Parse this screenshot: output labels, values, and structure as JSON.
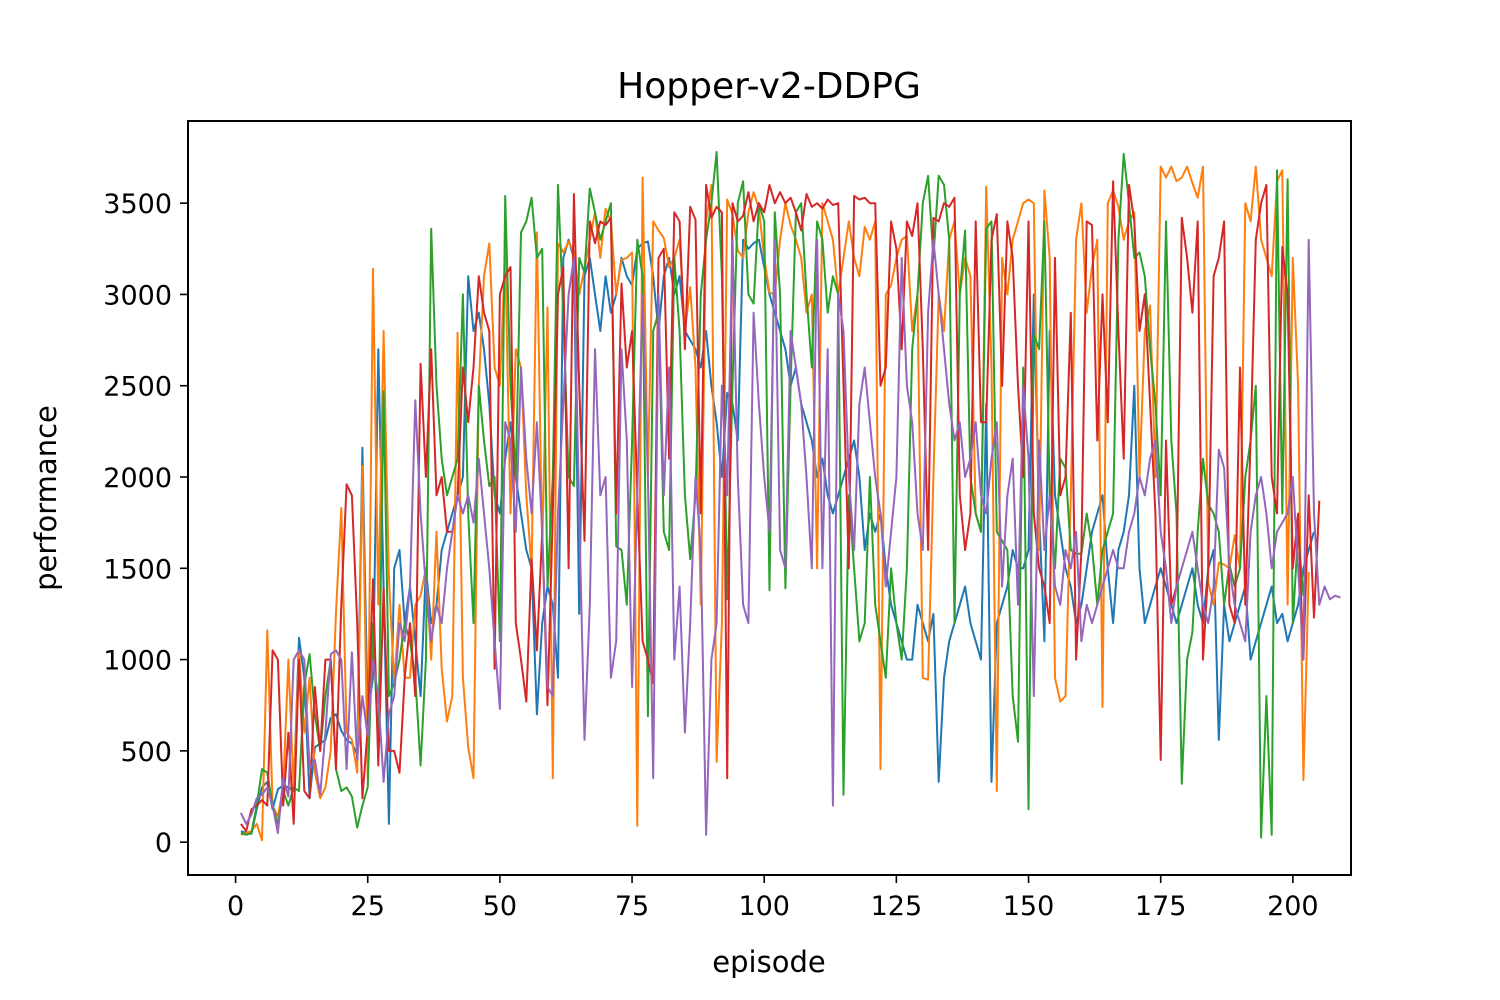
{
  "chart_data": {
    "type": "line",
    "title": "Hopper-v2-DDPG",
    "xlabel": "episode",
    "ylabel": "performance",
    "xlim": [
      -9,
      211
    ],
    "ylim": [
      -180,
      3950
    ],
    "x_ticks": [
      0,
      25,
      50,
      75,
      100,
      125,
      150,
      175,
      200
    ],
    "x_tick_labels": [
      "0",
      "25",
      "50",
      "75",
      "100",
      "125",
      "150",
      "175",
      "200"
    ],
    "y_ticks": [
      0,
      500,
      1000,
      1500,
      2000,
      2500,
      3000,
      3500
    ],
    "y_tick_labels": [
      "0",
      "500",
      "1000",
      "1500",
      "2000",
      "2500",
      "3000",
      "3500"
    ],
    "grid": false,
    "legend": "none",
    "series": [
      {
        "color": "#1f77b4",
        "x_start": 1,
        "values": [
          60,
          50,
          45,
          180,
          300,
          330,
          180,
          290,
          310,
          300,
          280,
          1120,
          900,
          240,
          520,
          540,
          560,
          680,
          700,
          610,
          560,
          540,
          480,
          2160,
          700,
          900,
          2700,
          1400,
          100,
          1500,
          1600,
          1200,
          1400,
          1100,
          800,
          1500,
          1200,
          1300,
          1600,
          1700,
          1800,
          1900,
          2000,
          3100,
          2800,
          2900,
          2700,
          2400,
          1900,
          1800,
          2100,
          2300,
          2000,
          1800,
          1600,
          1500,
          700,
          1200,
          1400,
          1300,
          900,
          3200,
          3300,
          3200,
          1250,
          3100,
          3200,
          3000,
          2800,
          3100,
          2900,
          3000,
          3200,
          3100,
          3050,
          3250,
          3280,
          3290,
          3100,
          2800,
          3100,
          3200,
          3000,
          3100,
          2800,
          2750,
          2700,
          2600,
          2800,
          2500,
          2300,
          2000,
          2460,
          2400,
          2200,
          3300,
          3250,
          3280,
          3300,
          3150,
          3000,
          2900,
          2800,
          2700,
          2500,
          2600,
          2400,
          2300,
          2200,
          2000,
          2100,
          1900,
          1800,
          1900,
          2000,
          2100,
          2200,
          2000,
          1600,
          1800,
          1700,
          1800,
          1500,
          1300,
          1200,
          1100,
          1000,
          1000,
          1300,
          1200,
          1100,
          1250,
          330,
          900,
          1100,
          1200,
          1300,
          1400,
          1200,
          1100,
          1000,
          2400,
          330,
          1200,
          1300,
          1400,
          1600,
          1500,
          1500,
          1600,
          3000,
          1800,
          1100,
          2800,
          1900,
          1700,
          1500,
          1400,
          1200,
          1300,
          1500,
          1700,
          1800,
          1900,
          1500,
          1200,
          1600,
          1700,
          1900,
          2500,
          1500,
          1200,
          1300,
          1400,
          1500,
          1400,
          1300,
          1200,
          1300,
          1400,
          1500,
          1300,
          1200,
          1500,
          1600,
          560,
          1300,
          1100,
          1200,
          1300,
          1400,
          1000,
          1100,
          1200,
          1300,
          1400,
          1200,
          1250,
          1100,
          1200,
          1300,
          1500,
          1600,
          1700
        ]
      },
      {
        "color": "#ff7f0e",
        "x_start": 1,
        "values": [
          40,
          50,
          60,
          100,
          10,
          1160,
          200,
          140,
          300,
          1000,
          280,
          1050,
          600,
          900,
          380,
          240,
          300,
          500,
          1260,
          1830,
          600,
          560,
          380,
          2060,
          350,
          3140,
          1300,
          2800,
          1450,
          870,
          1300,
          900,
          900,
          1300,
          1350,
          1500,
          1000,
          1700,
          950,
          660,
          800,
          2790,
          900,
          520,
          350,
          2500,
          3100,
          3280,
          2600,
          2500,
          3230,
          1800,
          2700,
          2600,
          1900,
          1500,
          3340,
          1600,
          2930,
          350,
          3280,
          3230,
          3290,
          3230,
          3000,
          3140,
          3300,
          3450,
          3200,
          3470,
          3400,
          3000,
          3190,
          3200,
          3230,
          90,
          3640,
          2000,
          3400,
          3350,
          3310,
          3150,
          3200,
          3300,
          2800,
          3040,
          2600,
          1300,
          3400,
          3600,
          440,
          1200,
          3520,
          3440,
          3240,
          3200,
          3450,
          3560,
          3470,
          3200,
          3010,
          3000,
          3300,
          3500,
          3380,
          3300,
          3200,
          2900,
          3000,
          1500,
          3500,
          3400,
          3300,
          3000,
          3200,
          3400,
          3200,
          3100,
          3370,
          3300,
          3400,
          400,
          3000,
          3050,
          3200,
          3300,
          3320,
          2800,
          3000,
          900,
          890,
          2000,
          3000,
          2800,
          3300,
          3400,
          3000,
          3200,
          3100,
          1800,
          1700,
          3590,
          2600,
          280,
          3200,
          3000,
          3300,
          3400,
          3500,
          3520,
          3500,
          1600,
          3570,
          3200,
          900,
          770,
          800,
          1900,
          3300,
          3500,
          2900,
          3150,
          3300,
          740,
          3500,
          3570,
          3480,
          3300,
          3400,
          3450,
          2000,
          2800,
          2940,
          2000,
          3700,
          3640,
          3700,
          3620,
          3640,
          3700,
          3610,
          3530,
          3700,
          1420,
          1300,
          1530,
          1520,
          1500,
          1680,
          1500,
          3500,
          3400,
          3700,
          3300,
          3200,
          3100,
          3620,
          3680,
          1300,
          3200,
          2500,
          340,
          1480
        ]
      },
      {
        "color": "#2ca02c",
        "x_start": 1,
        "values": [
          50,
          40,
          50,
          200,
          400,
          380,
          200,
          100,
          280,
          200,
          300,
          280,
          860,
          1030,
          700,
          500,
          800,
          1000,
          400,
          280,
          300,
          250,
          80,
          200,
          300,
          1200,
          500,
          2470,
          800,
          870,
          1000,
          1200,
          1100,
          900,
          420,
          1000,
          3360,
          2500,
          2100,
          1900,
          2000,
          2100,
          3000,
          1800,
          1200,
          2500,
          2200,
          1950,
          2000,
          1100,
          3540,
          2500,
          2000,
          3340,
          3400,
          3530,
          3200,
          3250,
          1400,
          2000,
          3600,
          2900,
          2000,
          1950,
          3200,
          3120,
          3580,
          3450,
          3300,
          3400,
          3500,
          1620,
          1600,
          1300,
          2200,
          3300,
          3100,
          690,
          2800,
          2900,
          1700,
          1600,
          3200,
          2800,
          1900,
          1550,
          1900,
          3000,
          3300,
          3500,
          3780,
          3100,
          1330,
          2500,
          3500,
          3620,
          3000,
          2950,
          3500,
          3400,
          1380,
          3450,
          3000,
          1390,
          2500,
          3450,
          3500,
          3000,
          2600,
          3400,
          3300,
          2900,
          3100,
          3000,
          260,
          1900,
          1500,
          1100,
          1200,
          2000,
          1300,
          1100,
          900,
          1500,
          1200,
          1000,
          1500,
          2700,
          3000,
          3500,
          3650,
          3200,
          3650,
          3600,
          3300,
          1200,
          3000,
          3350,
          2000,
          1800,
          1700,
          3360,
          3400,
          1700,
          1650,
          1600,
          800,
          550,
          2600,
          180,
          2780,
          2700,
          3400,
          1900,
          1500,
          2100,
          2050,
          1600,
          1580,
          1580,
          1800,
          1620,
          1300,
          1600,
          1700,
          1800,
          3300,
          3770,
          3500,
          3200,
          3230,
          3100,
          2700,
          2400,
          1900,
          3400,
          2200,
          1800,
          320,
          1000,
          1150,
          1700,
          2100,
          1850,
          1800,
          1700,
          1300,
          1520,
          1400,
          1500,
          2000,
          2200,
          2500,
          25,
          800,
          40,
          3680,
          1800,
          3630,
          1200,
          1700,
          1350
        ]
      },
      {
        "color": "#d62728",
        "x_start": 1,
        "values": [
          100,
          60,
          180,
          200,
          230,
          200,
          1050,
          1000,
          200,
          600,
          100,
          1000,
          280,
          240,
          850,
          500,
          1000,
          1000,
          400,
          1300,
          1960,
          1900,
          1200,
          240,
          620,
          1440,
          420,
          1390,
          500,
          500,
          380,
          900,
          1200,
          800,
          2620,
          2000,
          2700,
          1900,
          2000,
          1700,
          1700,
          1900,
          2600,
          2300,
          2600,
          3100,
          2900,
          2800,
          950,
          3000,
          3100,
          3150,
          1200,
          1000,
          770,
          1550,
          1050,
          1700,
          750,
          1800,
          3000,
          3150,
          1500,
          3550,
          2500,
          1650,
          3400,
          3280,
          3400,
          3380,
          3420,
          1800,
          3060,
          2600,
          2800,
          1900,
          1100,
          1000,
          870,
          3200,
          3250,
          2100,
          3450,
          3400,
          2700,
          3480,
          3410,
          1800,
          3600,
          3420,
          3480,
          3450,
          350,
          3500,
          3400,
          3430,
          3560,
          3400,
          3500,
          3450,
          3600,
          3500,
          3560,
          3500,
          3530,
          3450,
          3350,
          3550,
          3480,
          3500,
          3470,
          3520,
          3490,
          3500,
          2500,
          1500,
          3540,
          3520,
          3530,
          3500,
          3500,
          2500,
          2600,
          3400,
          3250,
          2700,
          3400,
          3320,
          3500,
          2700,
          1600,
          3420,
          3400,
          3500,
          3480,
          3530,
          1900,
          1600,
          1800,
          3400,
          2300,
          2300,
          3300,
          3440,
          2500,
          3400,
          3200,
          2500,
          2000,
          3400,
          1800,
          1500,
          1400,
          1200,
          3200,
          1900,
          2000,
          2900,
          1000,
          1600,
          3400,
          3380,
          2200,
          3000,
          2300,
          3620,
          2800,
          2100,
          3600,
          3400,
          2800,
          3000,
          2400,
          1800,
          450,
          2200,
          1300,
          1400,
          3420,
          3200,
          2900,
          3400,
          1000,
          1500,
          3100,
          3200,
          3400,
          1300,
          1200,
          2600,
          1300,
          2200,
          3300,
          3500,
          3600,
          2000,
          1800,
          3260,
          3000,
          1500,
          1800,
          1000,
          1900,
          1230,
          1870
        ]
      },
      {
        "color": "#9467bd",
        "x_start": 1,
        "values": [
          160,
          100,
          150,
          240,
          260,
          300,
          200,
          50,
          350,
          250,
          1000,
          1050,
          1000,
          400,
          450,
          260,
          600,
          1030,
          1050,
          1000,
          400,
          1040,
          450,
          800,
          580,
          1000,
          800,
          330,
          700,
          800,
          1200,
          1100,
          1400,
          2420,
          1800,
          1400,
          1100,
          1300,
          1200,
          1500,
          1700,
          1900,
          1800,
          1900,
          1750,
          2100,
          1800,
          1500,
          1100,
          730,
          2300,
          2200,
          1700,
          2600,
          2100,
          1800,
          2300,
          1700,
          850,
          800,
          1800,
          2400,
          3000,
          3200,
          1800,
          560,
          1300,
          2700,
          1900,
          2000,
          900,
          1100,
          2700,
          2200,
          850,
          1900,
          3000,
          2000,
          350,
          3000,
          1900,
          2600,
          1000,
          1400,
          600,
          1200,
          2000,
          1600,
          40,
          1000,
          1200,
          2500,
          1900,
          3300,
          2000,
          1300,
          1200,
          2900,
          2400,
          2000,
          1700,
          3300,
          1600,
          1500,
          2800,
          2600,
          2400,
          2000,
          1500,
          3300,
          1500,
          2700,
          200,
          3000,
          2800,
          2000,
          1600,
          2400,
          2600,
          2300,
          2000,
          1800,
          1400,
          1700,
          2000,
          3200,
          2500,
          2300,
          1800,
          1600,
          2900,
          3300,
          3000,
          2700,
          2400,
          2200,
          2300,
          2000,
          2100,
          2300,
          1900,
          1800,
          2100,
          2300,
          1400,
          1900,
          2100,
          1300,
          2500,
          2100,
          800,
          2200,
          1600,
          1900,
          1400,
          1300,
          1600,
          1500,
          1700,
          1100,
          1300,
          1200,
          1300,
          1400,
          1500,
          1600,
          1500,
          1500,
          1700,
          1800,
          2000,
          1900,
          2100,
          2200,
          1700,
          1500,
          1200,
          1400,
          1500,
          1600,
          1700,
          1500,
          1300,
          1200,
          1400,
          2150,
          2050,
          1500,
          1300,
          1200,
          1100,
          1700,
          1900,
          2000,
          1800,
          1500,
          1700,
          1750,
          1800,
          2000,
          1500,
          1000,
          3300,
          1800,
          1300,
          1400,
          1330,
          1350,
          1340
        ]
      }
    ]
  }
}
